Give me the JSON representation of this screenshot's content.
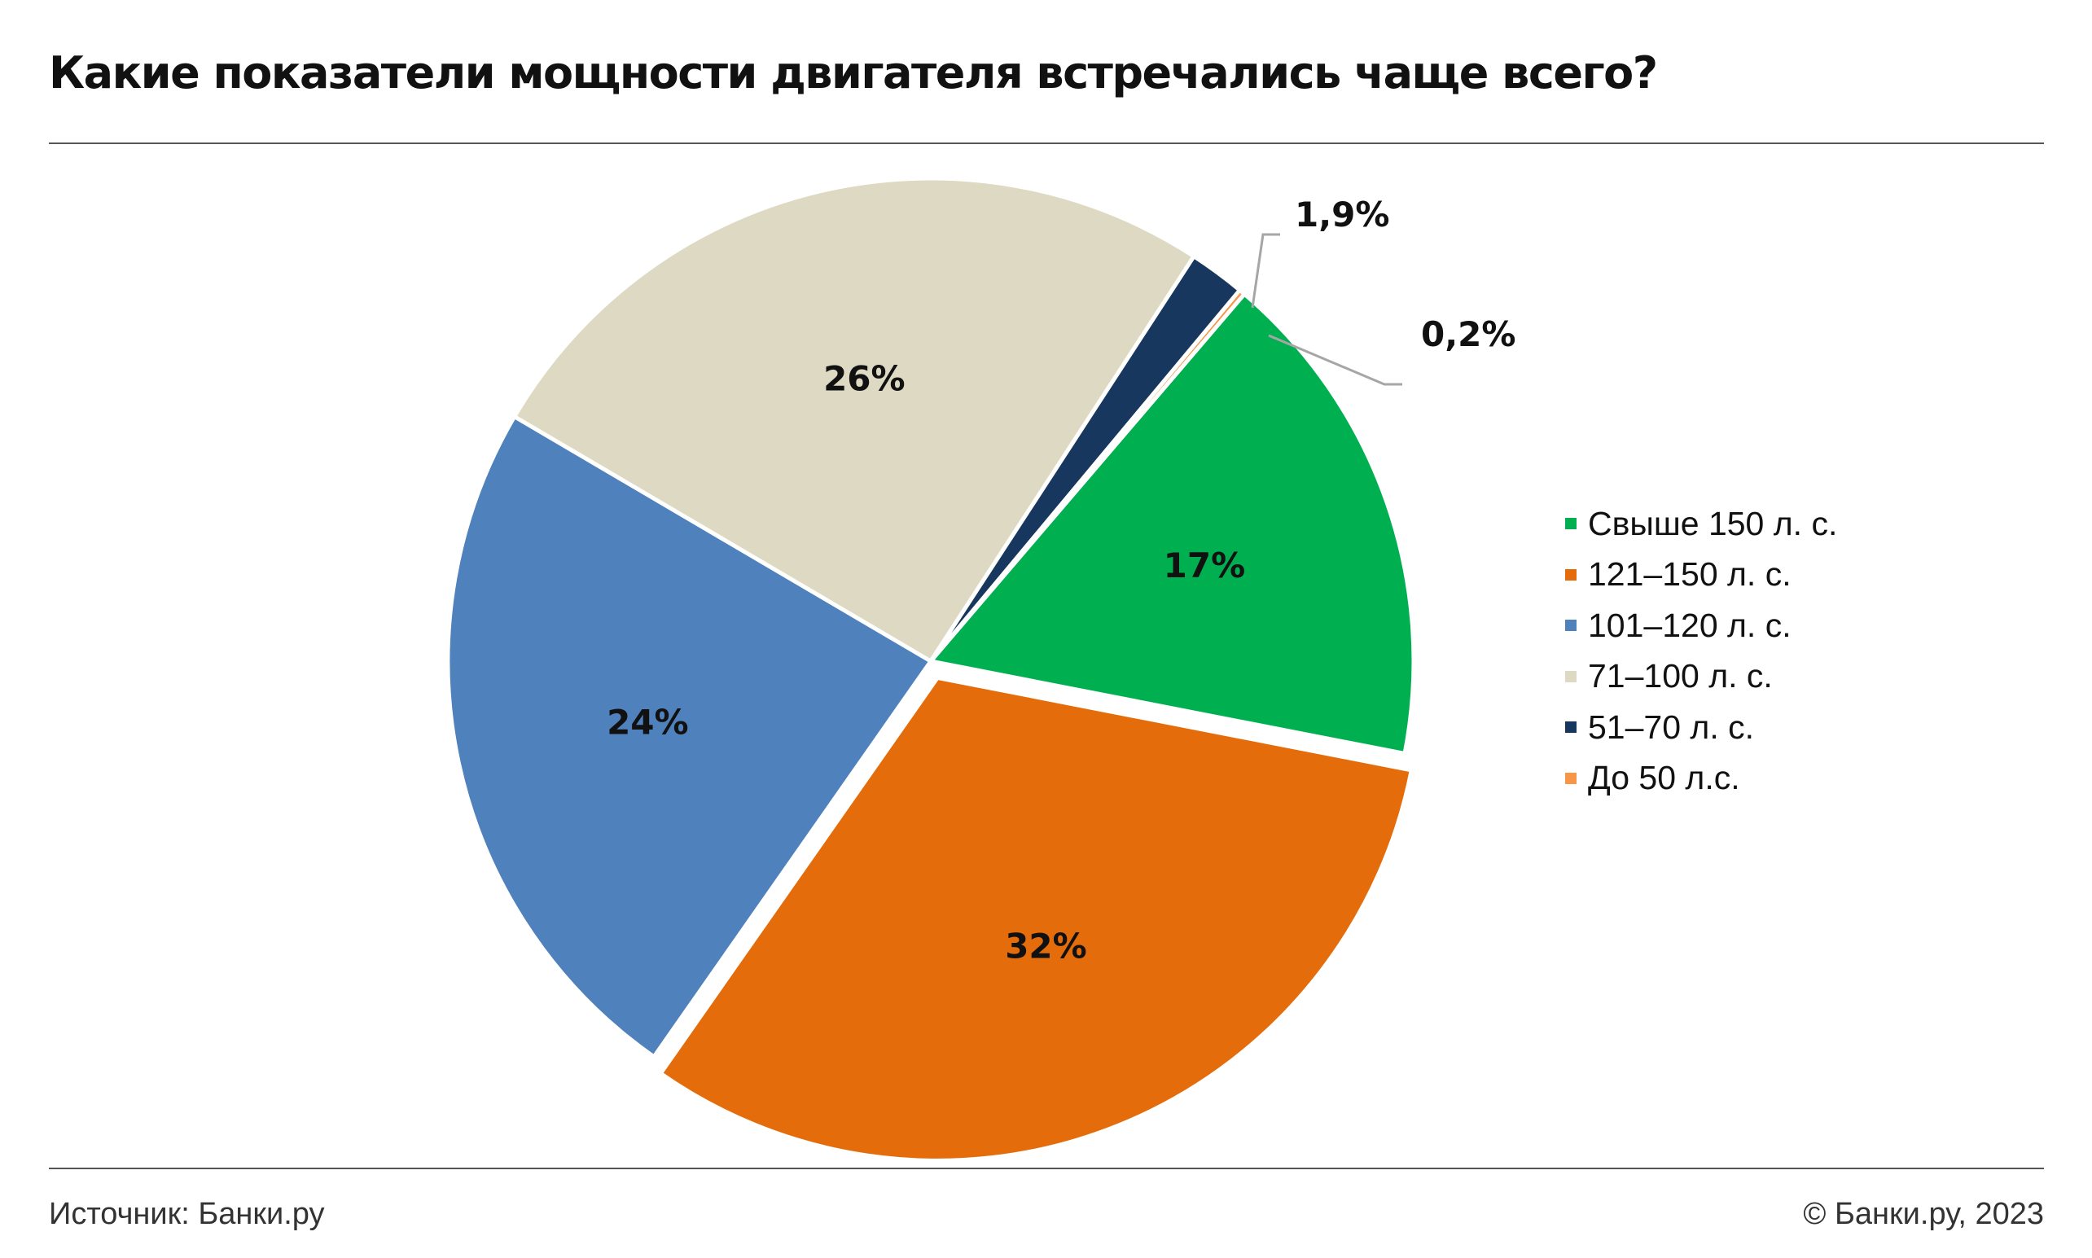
{
  "chart_data": {
    "type": "pie",
    "title": "Какие показатели мощности двигателя встречались чаще всего?",
    "slices": [
      {
        "label": "Свыше 150 л. с.",
        "value": 17,
        "display": "17%",
        "color": "#00B050"
      },
      {
        "label": "121–150 л. с.",
        "value": 32,
        "display": "32%",
        "color": "#E46C0A"
      },
      {
        "label": "101–120 л. с.",
        "value": 24,
        "display": "24%",
        "color": "#4F81BD"
      },
      {
        "label": "71–100 л. с.",
        "value": 26,
        "display": "26%",
        "color": "#DDD9C3"
      },
      {
        "label": "51–70 л. с.",
        "value": 1.9,
        "display": "1,9%",
        "color": "#17375E"
      },
      {
        "label": "До 50 л.с.",
        "value": 0.2,
        "display": "0,2%",
        "color": "#F79646"
      }
    ],
    "legend_position": "right"
  },
  "footer": {
    "source": "Источник: Банки.ру",
    "copyright": "© Банки.ру, 2023"
  }
}
